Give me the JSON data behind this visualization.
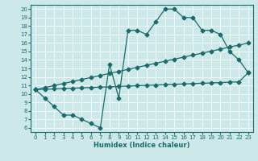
{
  "xlabel": "Humidex (Indice chaleur)",
  "xlim": [
    -0.5,
    23.5
  ],
  "ylim": [
    5.5,
    20.5
  ],
  "yticks": [
    6,
    7,
    8,
    9,
    10,
    11,
    12,
    13,
    14,
    15,
    16,
    17,
    18,
    19,
    20
  ],
  "xticks": [
    0,
    1,
    2,
    3,
    4,
    5,
    6,
    7,
    8,
    9,
    10,
    11,
    12,
    13,
    14,
    15,
    16,
    17,
    18,
    19,
    20,
    21,
    22,
    23
  ],
  "bg_color": "#cde8e8",
  "line_color": "#1a6b6b",
  "line1_x": [
    0,
    1,
    2,
    3,
    4,
    5,
    6,
    7,
    8,
    9,
    10,
    11,
    12,
    13,
    14,
    15,
    16,
    17,
    18,
    19,
    20,
    21,
    22,
    23
  ],
  "line1_y": [
    10.5,
    9.5,
    8.5,
    7.5,
    7.5,
    7.0,
    6.5,
    6.0,
    13.5,
    9.5,
    17.5,
    17.5,
    17.0,
    18.5,
    20.0,
    20.0,
    19.0,
    19.0,
    17.5,
    17.5,
    17.0,
    15.0,
    14.0,
    12.5
  ],
  "line2_x": [
    0,
    1,
    2,
    3,
    4,
    5,
    6,
    7,
    8,
    9,
    10,
    11,
    12,
    13,
    14,
    15,
    16,
    17,
    18,
    19,
    20,
    21,
    22,
    23
  ],
  "line2_y": [
    10.5,
    10.54,
    10.58,
    10.63,
    10.67,
    10.71,
    10.75,
    10.79,
    10.83,
    10.88,
    10.92,
    10.96,
    11.0,
    11.04,
    11.08,
    11.13,
    11.17,
    11.21,
    11.25,
    11.29,
    11.33,
    11.38,
    11.42,
    12.5
  ],
  "line3_x": [
    0,
    1,
    2,
    3,
    4,
    5,
    6,
    7,
    8,
    9,
    10,
    11,
    12,
    13,
    14,
    15,
    16,
    17,
    18,
    19,
    20,
    21,
    22,
    23
  ],
  "line3_y": [
    10.5,
    10.74,
    10.98,
    11.22,
    11.46,
    11.7,
    11.93,
    12.17,
    12.41,
    12.65,
    12.89,
    13.13,
    13.37,
    13.61,
    13.85,
    14.09,
    14.33,
    14.57,
    14.8,
    15.04,
    15.28,
    15.52,
    15.76,
    16.0
  ],
  "markersize": 2.5,
  "linewidth": 0.9
}
